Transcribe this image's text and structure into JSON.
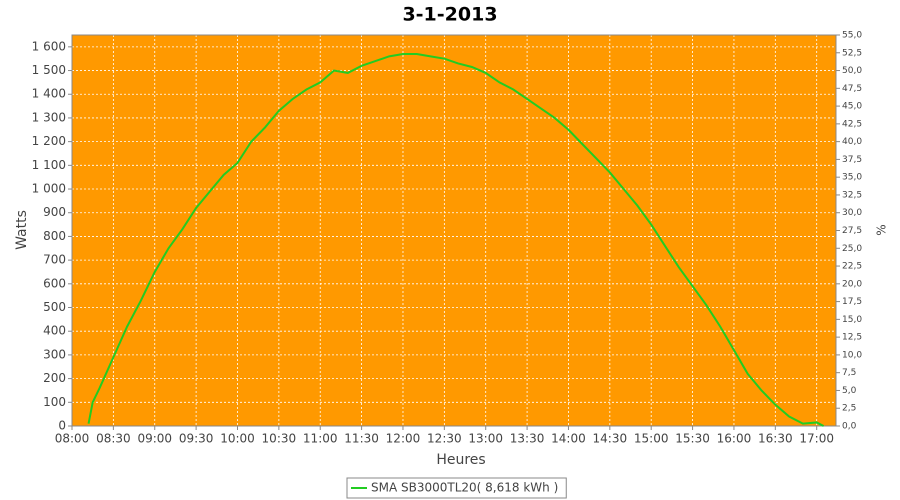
{
  "chart_data": {
    "type": "line",
    "title": "3-1-2013",
    "xlabel": "Heures",
    "ylabel": "Watts",
    "y2label": "%",
    "x": [
      "08:12",
      "08:15",
      "08:20",
      "08:30",
      "08:40",
      "08:50",
      "09:00",
      "09:10",
      "09:20",
      "09:30",
      "09:40",
      "09:50",
      "10:00",
      "10:10",
      "10:20",
      "10:30",
      "10:40",
      "10:50",
      "11:00",
      "11:10",
      "11:20",
      "11:30",
      "11:40",
      "11:50",
      "12:00",
      "12:10",
      "12:20",
      "12:30",
      "12:40",
      "12:50",
      "13:00",
      "13:10",
      "13:20",
      "13:30",
      "13:40",
      "13:50",
      "14:00",
      "14:10",
      "14:20",
      "14:30",
      "14:40",
      "14:50",
      "15:00",
      "15:10",
      "15:20",
      "15:30",
      "15:40",
      "15:50",
      "16:00",
      "16:10",
      "16:20",
      "16:30",
      "16:40",
      "16:50",
      "17:00",
      "17:05"
    ],
    "series": [
      {
        "name": "SMA SB3000TL20( 8,618 kWh )",
        "color": "#22cc22",
        "values": [
          10,
          100,
          160,
          290,
          420,
          530,
          650,
          750,
          830,
          920,
          990,
          1060,
          1110,
          1200,
          1260,
          1330,
          1380,
          1420,
          1450,
          1500,
          1490,
          1520,
          1540,
          1560,
          1570,
          1570,
          1560,
          1550,
          1530,
          1515,
          1490,
          1450,
          1420,
          1380,
          1340,
          1300,
          1250,
          1190,
          1130,
          1070,
          1000,
          930,
          850,
          760,
          670,
          590,
          510,
          420,
          320,
          220,
          150,
          90,
          40,
          10,
          15,
          0
        ]
      }
    ],
    "xlim": [
      "08:00",
      "17:14"
    ],
    "xticks": [
      "08:00",
      "08:30",
      "09:00",
      "09:30",
      "10:00",
      "10:30",
      "11:00",
      "11:30",
      "12:00",
      "12:30",
      "13:00",
      "13:30",
      "14:00",
      "14:30",
      "15:00",
      "15:30",
      "16:00",
      "16:30",
      "17:00"
    ],
    "ylim": [
      0,
      1650
    ],
    "yticks": [
      0,
      100,
      200,
      300,
      400,
      500,
      600,
      700,
      800,
      900,
      {
        "value": 1000,
        "label": "1 000"
      },
      {
        "value": 1100,
        "label": "1 100"
      },
      {
        "value": 1200,
        "label": "1 200"
      },
      {
        "value": 1300,
        "label": "1 300"
      },
      {
        "value": 1400,
        "label": "1 400"
      },
      {
        "value": 1500,
        "label": "1 500"
      },
      {
        "value": 1600,
        "label": "1 600"
      }
    ],
    "y2lim": [
      0,
      55
    ],
    "y2ticks": [
      {
        "value": 0,
        "label": "0,0"
      },
      {
        "value": 2.5,
        "label": "2,5"
      },
      {
        "value": 5,
        "label": "5,0"
      },
      {
        "value": 7.5,
        "label": "7,5"
      },
      {
        "value": 10,
        "label": "10,0"
      },
      {
        "value": 12.5,
        "label": "12,5"
      },
      {
        "value": 15,
        "label": "15,0"
      },
      {
        "value": 17.5,
        "label": "17,5"
      },
      {
        "value": 20,
        "label": "20,0"
      },
      {
        "value": 22.5,
        "label": "22,5"
      },
      {
        "value": 25,
        "label": "25,0"
      },
      {
        "value": 27.5,
        "label": "27,5"
      },
      {
        "value": 30,
        "label": "30,0"
      },
      {
        "value": 32.5,
        "label": "32,5"
      },
      {
        "value": 35,
        "label": "35,0"
      },
      {
        "value": 37.5,
        "label": "37,5"
      },
      {
        "value": 40,
        "label": "40,0"
      },
      {
        "value": 42.5,
        "label": "42,5"
      },
      {
        "value": 45,
        "label": "45,0"
      },
      {
        "value": 47.5,
        "label": "47,5"
      },
      {
        "value": 50,
        "label": "50,0"
      },
      {
        "value": 52.5,
        "label": "52,5"
      },
      {
        "value": 55,
        "label": "55,0"
      }
    ],
    "grid": true,
    "background": "#ff9900",
    "legend": "bottom"
  }
}
